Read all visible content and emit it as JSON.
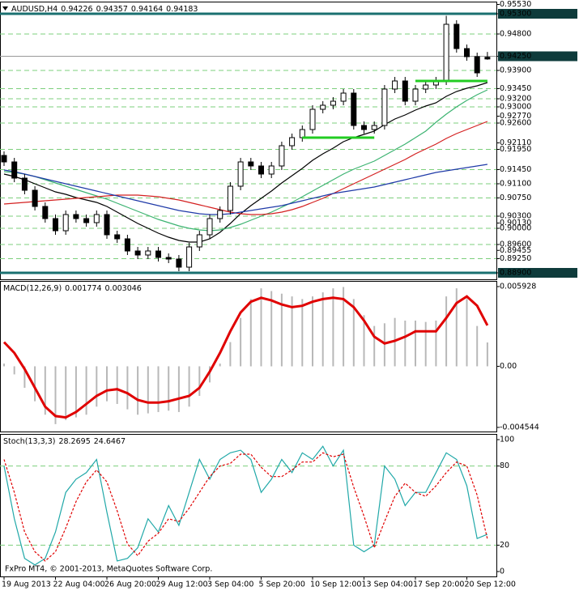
{
  "chart_data": [
    {
      "type": "candlestick",
      "title": "AUDUSD,H4",
      "categories": [
        "19 Aug 2013",
        null,
        null,
        null,
        null,
        "22 Aug 04:00",
        null,
        null,
        null,
        null,
        "26 Aug 20:00",
        null,
        null,
        null,
        null,
        "29 Aug 12:00",
        null,
        null,
        null,
        null,
        "3 Sep 04:00",
        null,
        null,
        null,
        null,
        "5 Sep 20:00",
        null,
        null,
        null,
        null,
        "10 Sep 12:00",
        null,
        null,
        null,
        null,
        "13 Sep 04:00",
        null,
        null,
        null,
        null,
        "17 Sep 20:00",
        null,
        null,
        null,
        null,
        "20 Sep 12:00",
        null,
        null
      ],
      "open": [
        0.918,
        0.9164,
        0.9124,
        0.9094,
        0.9054,
        0.9024,
        0.8994,
        0.9034,
        0.9024,
        0.9014,
        0.9034,
        0.8984,
        0.8974,
        0.8944,
        0.8934,
        0.8944,
        0.8928,
        0.8924,
        0.8904,
        0.8954,
        0.8984,
        0.9024,
        0.9044,
        0.9104,
        0.9164,
        0.9154,
        0.9134,
        0.9154,
        0.9204,
        0.9224,
        0.9244,
        0.9294,
        0.9304,
        0.9314,
        0.9334,
        0.9254,
        0.9244,
        0.9254,
        0.9344,
        0.9364,
        0.9314,
        0.9344,
        0.9354,
        0.9364,
        0.9504,
        0.9444,
        0.9424,
        0.94226
      ],
      "high": [
        0.919,
        0.9174,
        0.9134,
        0.9104,
        0.9064,
        0.9034,
        0.9044,
        0.9044,
        0.9034,
        0.9044,
        0.9044,
        0.8994,
        0.8984,
        0.8954,
        0.8954,
        0.8954,
        0.8938,
        0.8934,
        0.8964,
        0.8994,
        0.9034,
        0.9054,
        0.9114,
        0.9174,
        0.9174,
        0.9164,
        0.9164,
        0.9214,
        0.9234,
        0.9254,
        0.9304,
        0.9314,
        0.9324,
        0.9344,
        0.9344,
        0.9264,
        0.9264,
        0.9354,
        0.9374,
        0.9374,
        0.9354,
        0.9364,
        0.9374,
        0.9525,
        0.9514,
        0.9454,
        0.9434,
        0.94357
      ],
      "low": [
        0.9154,
        0.9114,
        0.9084,
        0.9044,
        0.9014,
        0.8984,
        0.8984,
        0.9014,
        0.9004,
        0.9004,
        0.8974,
        0.8964,
        0.8934,
        0.8924,
        0.8924,
        0.8918,
        0.8914,
        0.8894,
        0.8894,
        0.8944,
        0.8974,
        0.9014,
        0.9034,
        0.9094,
        0.9144,
        0.9124,
        0.9124,
        0.9144,
        0.9194,
        0.9214,
        0.9234,
        0.9284,
        0.9294,
        0.9304,
        0.9244,
        0.9234,
        0.9234,
        0.9244,
        0.9334,
        0.9304,
        0.9304,
        0.9334,
        0.9344,
        0.9354,
        0.9434,
        0.9414,
        0.9374,
        0.94164
      ],
      "close": [
        0.9164,
        0.9124,
        0.9094,
        0.9054,
        0.9024,
        0.8994,
        0.9034,
        0.9024,
        0.9014,
        0.9034,
        0.8984,
        0.8974,
        0.8944,
        0.8934,
        0.8944,
        0.8928,
        0.8924,
        0.8904,
        0.8954,
        0.8984,
        0.9024,
        0.9044,
        0.9104,
        0.9164,
        0.9154,
        0.9134,
        0.9154,
        0.9204,
        0.9224,
        0.9244,
        0.9294,
        0.9304,
        0.9314,
        0.9334,
        0.9254,
        0.9244,
        0.9254,
        0.9344,
        0.9364,
        0.9314,
        0.9344,
        0.9354,
        0.9364,
        0.9504,
        0.9444,
        0.9424,
        0.9384,
        0.94183
      ],
      "lines": [
        {
          "color": "#000000",
          "values": [
            0.9134,
            0.9128,
            0.912,
            0.911,
            0.91,
            0.909,
            0.9084,
            0.9076,
            0.907,
            0.9064,
            0.9054,
            0.904,
            0.9026,
            0.9012,
            0.9,
            0.8988,
            0.8978,
            0.897,
            0.8966,
            0.8966,
            0.8974,
            0.899,
            0.9012,
            0.9036,
            0.9056,
            0.9074,
            0.9092,
            0.9112,
            0.913,
            0.9148,
            0.9168,
            0.9184,
            0.9198,
            0.9214,
            0.9224,
            0.9232,
            0.924,
            0.9256,
            0.927,
            0.928,
            0.9292,
            0.9302,
            0.931,
            0.9326,
            0.9338,
            0.9346,
            0.9352,
            0.936
          ]
        },
        {
          "color": "#3cb371",
          "values": [
            0.914,
            0.9138,
            0.9134,
            0.9128,
            0.912,
            0.9112,
            0.9104,
            0.9096,
            0.9088,
            0.908,
            0.9072,
            0.9062,
            0.9052,
            0.9042,
            0.9032,
            0.9022,
            0.9014,
            0.9006,
            0.9,
            0.8996,
            0.8994,
            0.8996,
            0.9002,
            0.901,
            0.902,
            0.903,
            0.904,
            0.9052,
            0.9064,
            0.9078,
            0.9092,
            0.9106,
            0.912,
            0.9134,
            0.9146,
            0.9156,
            0.9166,
            0.918,
            0.9194,
            0.9208,
            0.9224,
            0.924,
            0.9262,
            0.9282,
            0.93,
            0.9316,
            0.933,
            0.9342
          ]
        },
        {
          "color": "#d42020",
          "values": [
            0.906,
            0.9062,
            0.9064,
            0.9066,
            0.9068,
            0.907,
            0.9072,
            0.9074,
            0.9076,
            0.9078,
            0.908,
            0.9082,
            0.9082,
            0.9082,
            0.908,
            0.9078,
            0.9074,
            0.907,
            0.9064,
            0.9058,
            0.9052,
            0.9046,
            0.904,
            0.9036,
            0.9034,
            0.9034,
            0.9036,
            0.904,
            0.9046,
            0.9054,
            0.9064,
            0.9074,
            0.9086,
            0.9098,
            0.911,
            0.9122,
            0.9134,
            0.9146,
            0.9158,
            0.917,
            0.9184,
            0.9196,
            0.9208,
            0.9222,
            0.9234,
            0.9244,
            0.9254,
            0.9264
          ]
        },
        {
          "color": "#1f3aa8",
          "values": [
            0.9144,
            0.914,
            0.9134,
            0.9128,
            0.9122,
            0.9116,
            0.911,
            0.9104,
            0.9098,
            0.9092,
            0.9086,
            0.908,
            0.9074,
            0.9068,
            0.9062,
            0.9056,
            0.905,
            0.9044,
            0.904,
            0.9036,
            0.9034,
            0.9034,
            0.9036,
            0.904,
            0.9044,
            0.9048,
            0.9052,
            0.9056,
            0.9062,
            0.9068,
            0.9074,
            0.908,
            0.9086,
            0.909,
            0.9094,
            0.9098,
            0.9102,
            0.9108,
            0.9114,
            0.912,
            0.9126,
            0.9132,
            0.9138,
            0.9142,
            0.9146,
            0.915,
            0.9154,
            0.9158
          ]
        }
      ],
      "segments": [
        {
          "value": 0.9364,
          "from": 40,
          "to": 47,
          "color": "#22cc22"
        },
        {
          "value": 0.9224,
          "from": 29,
          "to": 36,
          "color": "#22cc22"
        }
      ],
      "ylim": [
        0.8874,
        0.9558
      ],
      "yticks": [
        {
          "value": 0.9553,
          "label": "0.95530"
        },
        {
          "value": 0.953,
          "label": "0.95300",
          "line": "thick",
          "marker": true
        },
        {
          "value": 0.948,
          "label": "0.94800",
          "line": "dashed"
        },
        {
          "value": 0.9425,
          "label": "0.94250",
          "line": "solid",
          "marker": true
        },
        {
          "value": 0.939,
          "label": "0.93900",
          "line": "dashed"
        },
        {
          "value": 0.9345,
          "label": "0.93450",
          "line": "dashed"
        },
        {
          "value": 0.932,
          "label": "0.93200",
          "line": "dashed"
        },
        {
          "value": 0.93,
          "label": "0.93000",
          "line": "dashed"
        },
        {
          "value": 0.9277,
          "label": "0.92770"
        },
        {
          "value": 0.926,
          "label": "0.92600",
          "line": "dashed"
        },
        {
          "value": 0.9211,
          "label": "0.92110"
        },
        {
          "value": 0.9195,
          "label": "0.91950",
          "line": "dashed"
        },
        {
          "value": 0.9145,
          "label": "0.91450",
          "line": "dashed"
        },
        {
          "value": 0.911,
          "label": "0.91100",
          "line": "dashed"
        },
        {
          "value": 0.9075,
          "label": "0.90750",
          "line": "dashed"
        },
        {
          "value": 0.903,
          "label": "0.90300",
          "line": "dashed"
        },
        {
          "value": 0.9013,
          "label": "0.90130"
        },
        {
          "value": 0.9,
          "label": "0.90000",
          "line": "dashed"
        },
        {
          "value": 0.896,
          "label": "0.89600",
          "line": "dashed"
        },
        {
          "value": 0.89455,
          "label": "0.89455"
        },
        {
          "value": 0.8925,
          "label": "0.89250",
          "line": "dashed"
        },
        {
          "value": 0.889,
          "label": "0.88900",
          "line": "thick",
          "marker": true
        }
      ]
    },
    {
      "type": "bar",
      "title": "MACD(12,26,9)",
      "series": [
        {
          "style": "bar",
          "color": "#b8b8b8",
          "values": [
            0.0002,
            -0.0006,
            -0.0016,
            -0.0026,
            -0.0036,
            -0.0043,
            -0.004,
            -0.0038,
            -0.0036,
            -0.003,
            -0.0026,
            -0.0028,
            -0.0032,
            -0.0036,
            -0.0035,
            -0.0034,
            -0.0033,
            -0.0034,
            -0.003,
            -0.0022,
            -0.0012,
            0.0002,
            0.0018,
            0.0036,
            0.005,
            0.0058,
            0.0056,
            0.0054,
            0.0052,
            0.005,
            0.0052,
            0.0055,
            0.0058,
            0.0059,
            0.005,
            0.0038,
            0.003,
            0.0032,
            0.0036,
            0.0034,
            0.0034,
            0.0033,
            0.0034,
            0.0052,
            0.0058,
            0.005,
            0.003,
            0.001774
          ]
        },
        {
          "style": "line",
          "color": "#e00000",
          "values": [
            0.0018,
            0.001,
            -0.0002,
            -0.0016,
            -0.003,
            -0.0037,
            -0.0038,
            -0.0034,
            -0.0028,
            -0.0022,
            -0.0018,
            -0.0017,
            -0.002,
            -0.0025,
            -0.0027,
            -0.0027,
            -0.0026,
            -0.0024,
            -0.0022,
            -0.0016,
            -0.0004,
            0.001,
            0.0026,
            0.004,
            0.0048,
            0.0051,
            0.0049,
            0.0046,
            0.0044,
            0.0045,
            0.0048,
            0.005,
            0.0051,
            0.005,
            0.0044,
            0.0034,
            0.0022,
            0.0017,
            0.0019,
            0.0022,
            0.0026,
            0.0026,
            0.0026,
            0.0036,
            0.0047,
            0.0052,
            0.0045,
            0.003046
          ]
        }
      ],
      "ylim": [
        -0.00485,
        0.00629
      ],
      "yticks": [
        0.005928,
        {
          "value": 0,
          "label": "0.00"
        },
        -0.004544
      ]
    },
    {
      "type": "line",
      "title": "Stoch(13,3,3)",
      "series": [
        {
          "style": "solid",
          "color": "#20a8a8",
          "values": [
            80,
            40,
            10,
            5,
            10,
            30,
            60,
            70,
            75,
            85,
            45,
            8,
            10,
            18,
            40,
            30,
            50,
            35,
            60,
            85,
            70,
            85,
            90,
            92,
            85,
            60,
            70,
            85,
            75,
            90,
            85,
            95,
            80,
            92,
            20,
            15,
            20,
            80,
            70,
            50,
            60,
            60,
            75,
            90,
            85,
            65,
            25,
            28.2695
          ]
        },
        {
          "style": "dashed",
          "color": "#e00000",
          "values": [
            85,
            60,
            30,
            15,
            8,
            15,
            33,
            53,
            68,
            77,
            68,
            46,
            21,
            12,
            23,
            29,
            40,
            38,
            48,
            60,
            72,
            80,
            82,
            89,
            89,
            79,
            72,
            72,
            77,
            83,
            83,
            90,
            87,
            89,
            64,
            42,
            18,
            38,
            57,
            67,
            60,
            57,
            65,
            75,
            83,
            80,
            58,
            24.6467
          ]
        }
      ],
      "ylim": [
        -3.7,
        103.7
      ],
      "yticks": [
        100,
        {
          "value": 80,
          "label": "80",
          "line": "dashed"
        },
        {
          "value": 20,
          "label": "20",
          "line": "dashed"
        },
        0
      ],
      "annotation": "FxPro MT4, © 2001-2013, MetaQuotes Software Corp."
    }
  ]
}
